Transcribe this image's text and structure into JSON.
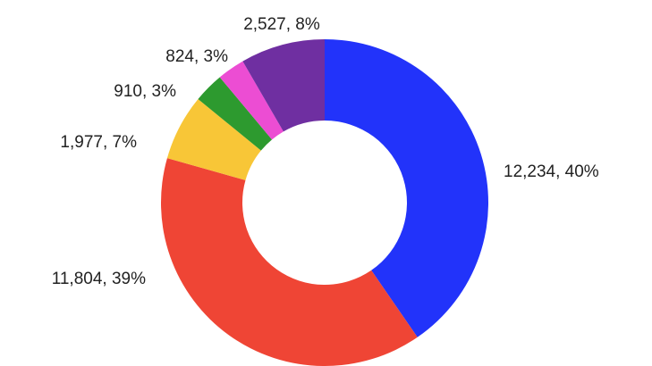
{
  "chart_data": {
    "type": "pie",
    "donut": true,
    "title": "",
    "slices": [
      {
        "value": 12234,
        "percent": 40,
        "label": "12,234, 40%",
        "color": "#2233fa"
      },
      {
        "value": 11804,
        "percent": 39,
        "label": "11,804, 39%",
        "color": "#ef4535"
      },
      {
        "value": 1977,
        "percent": 7,
        "label": "1,977, 7%",
        "color": "#f8c637"
      },
      {
        "value": 910,
        "percent": 3,
        "label": "910, 3%",
        "color": "#2d9a2f"
      },
      {
        "value": 824,
        "percent": 3,
        "label": "824, 3%",
        "color": "#ec4dd3"
      },
      {
        "value": 2527,
        "percent": 8,
        "label": "2,527, 8%",
        "color": "#6f2fa1"
      }
    ],
    "start_angle_deg": 0,
    "direction": "clockwise",
    "legend": "none"
  }
}
